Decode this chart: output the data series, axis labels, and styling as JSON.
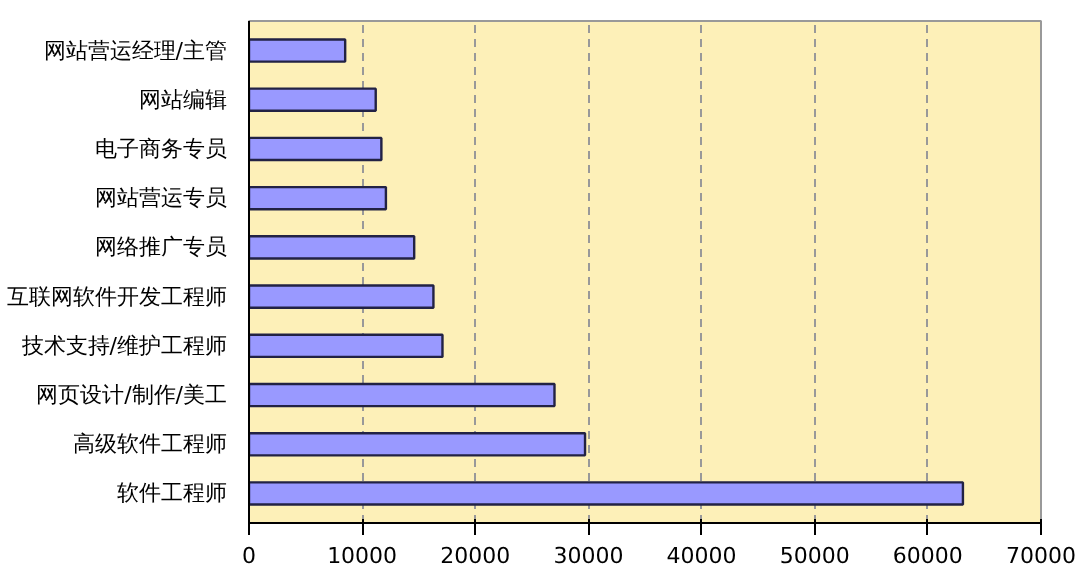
{
  "chart_data": {
    "type": "bar",
    "orientation": "horizontal",
    "categories": [
      "网站营运经理/主管",
      "网站编辑",
      "电子商务专员",
      "网站营运专员",
      "网络推广专员",
      "互联网软件开发工程师",
      "技术支持/维护工程师",
      "网页设计/制作/美工",
      "高级软件工程师",
      "软件工程师"
    ],
    "values": [
      8500,
      11200,
      11700,
      12100,
      14600,
      16300,
      17100,
      27000,
      29700,
      63100
    ],
    "color": "#9999ff",
    "xlim": [
      0,
      70000
    ],
    "xticks": [
      0,
      10000,
      20000,
      30000,
      40000,
      50000,
      60000,
      70000
    ],
    "grid": "x"
  }
}
